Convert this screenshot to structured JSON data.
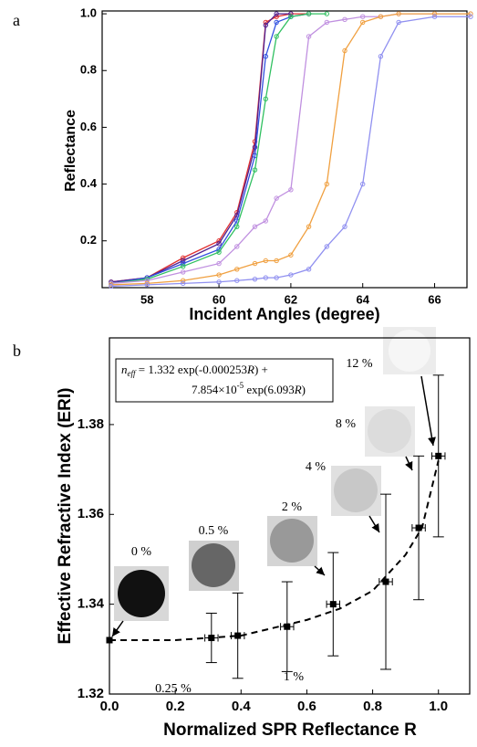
{
  "chart_data": [
    {
      "type": "line",
      "panel_label": "a",
      "x_label": "Incident Angles (degree)",
      "y_label": "Reflectance",
      "x": [
        57,
        58,
        59,
        60,
        60.5,
        61,
        61.3,
        61.6,
        62,
        62.5,
        63,
        63.5,
        64,
        64.5,
        65,
        66,
        67
      ],
      "series": [
        {
          "color": "#e03030",
          "values": [
            0.055,
            0.07,
            0.14,
            0.2,
            0.3,
            0.55,
            0.97,
            0.99,
            1.0,
            1.0,
            null,
            null,
            null,
            null,
            null,
            null,
            null
          ]
        },
        {
          "color": "#502090",
          "values": [
            0.055,
            0.07,
            0.13,
            0.19,
            0.29,
            0.53,
            0.96,
            1.0,
            1.0,
            null,
            null,
            null,
            null,
            null,
            null,
            null,
            null
          ]
        },
        {
          "color": "#3050e0",
          "values": [
            0.05,
            0.07,
            0.12,
            0.17,
            0.27,
            0.5,
            0.85,
            0.97,
            0.99,
            1.0,
            null,
            null,
            null,
            null,
            null,
            null,
            null
          ]
        },
        {
          "color": "#30c060",
          "values": [
            0.05,
            0.065,
            0.11,
            0.16,
            0.25,
            0.45,
            0.7,
            0.92,
            0.99,
            1.0,
            1.0,
            null,
            null,
            null,
            null,
            null,
            null
          ]
        },
        {
          "color": "#c090e0",
          "values": [
            0.05,
            0.06,
            0.09,
            0.12,
            0.18,
            0.25,
            0.27,
            0.35,
            0.38,
            0.92,
            0.97,
            0.98,
            0.99,
            0.99,
            1.0,
            1.0,
            1.0
          ]
        },
        {
          "color": "#f0a040",
          "values": [
            0.045,
            0.05,
            0.06,
            0.08,
            0.1,
            0.12,
            0.13,
            0.13,
            0.15,
            0.25,
            0.4,
            0.87,
            0.97,
            0.99,
            1.0,
            1.0,
            1.0
          ]
        },
        {
          "color": "#9090f0",
          "values": [
            0.04,
            0.045,
            0.05,
            0.055,
            0.06,
            0.065,
            0.07,
            0.07,
            0.08,
            0.1,
            0.18,
            0.25,
            0.4,
            0.85,
            0.97,
            0.99,
            0.99
          ]
        }
      ],
      "xlim": [
        56.75,
        66.9
      ],
      "ylim": [
        0.035,
        1.01
      ],
      "xticks": [
        58,
        60,
        62,
        64,
        66
      ],
      "yticks": [
        0.2,
        0.4,
        0.6,
        0.8,
        {
          "value": 1,
          "label": "1.0"
        }
      ]
    },
    {
      "type": "scatter",
      "panel_label": "b",
      "x_label": "Normalized SPR Reflectance R",
      "y_label": "Effective Refractive Index (ERI)",
      "color": "#000000",
      "x": [
        0,
        0.31,
        0.39,
        0.54,
        0.68,
        0.84,
        0.94,
        1.0
      ],
      "values": [
        1.332,
        1.3325,
        1.333,
        1.335,
        1.34,
        1.345,
        1.357,
        1.373
      ],
      "yerr": [
        null,
        0.0055,
        0.0095,
        0.01,
        0.0115,
        0.0195,
        0.016,
        0.018
      ],
      "xerr": [
        null,
        0.02,
        0.02,
        0.02,
        0.02,
        0.02,
        0.02,
        0.02
      ],
      "fit": {
        "x": [
          0,
          0.2,
          0.4,
          0.6,
          0.7,
          0.8,
          0.9,
          0.95,
          1.0
        ],
        "values": [
          1.332,
          1.332,
          1.333,
          1.3365,
          1.339,
          1.343,
          1.351,
          1.357,
          1.372
        ]
      },
      "equation": {
        "line1": [
          "n",
          "eff",
          " = 1.332 exp(-0.000253",
          "R",
          ") +"
        ],
        "line2": [
          "7.854×10",
          "-5",
          " exp(6.093",
          "R",
          ")"
        ]
      },
      "annotations": [
        "0 %",
        "0.5 %",
        "2 %",
        "4 %",
        "8 %",
        "12 %",
        "0.25 %",
        "1 %"
      ],
      "xlim": [
        0,
        1.095
      ],
      "ylim": [
        1.32,
        1.3993
      ],
      "xticks": [
        {
          "value": 0,
          "label": "0.0"
        },
        0.2,
        0.4,
        0.6,
        0.8,
        {
          "value": 1,
          "label": "1.0"
        }
      ],
      "yticks": [
        1.32,
        1.34,
        1.36,
        1.38
      ]
    }
  ]
}
